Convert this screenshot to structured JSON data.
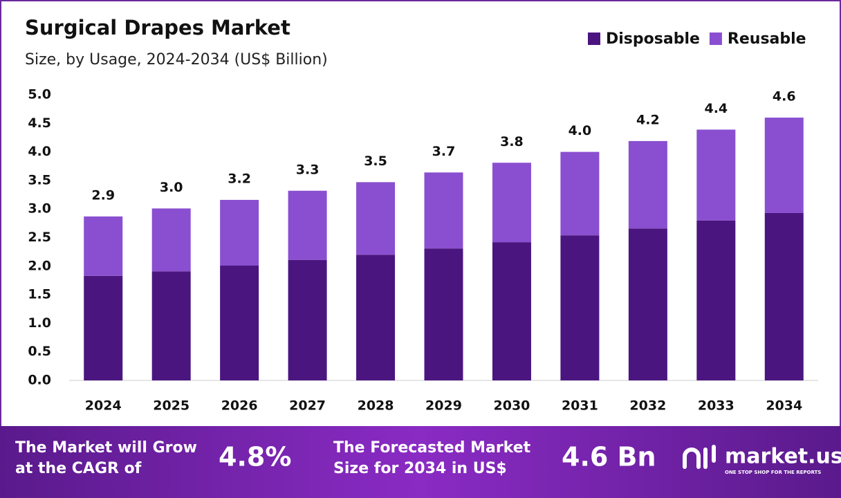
{
  "chart_data": {
    "type": "stacked_bar",
    "title": "Surgical Drapes Market",
    "subtitle": "Size, by Usage, 2024-2034 (US$ Billion)",
    "categories": [
      "2024",
      "2025",
      "2026",
      "2027",
      "2028",
      "2029",
      "2030",
      "2031",
      "2032",
      "2033",
      "2034"
    ],
    "series": [
      {
        "name": "Disposable",
        "color": "#4b1580",
        "values": [
          1.83,
          1.91,
          2.01,
          2.11,
          2.2,
          2.31,
          2.42,
          2.54,
          2.66,
          2.8,
          2.93
        ]
      },
      {
        "name": "Reusable",
        "color": "#8a4fd0",
        "values": [
          1.04,
          1.1,
          1.15,
          1.21,
          1.27,
          1.33,
          1.39,
          1.46,
          1.53,
          1.59,
          1.67
        ]
      }
    ],
    "total_labels": [
      "2.9",
      "3.0",
      "3.2",
      "3.3",
      "3.5",
      "3.7",
      "3.8",
      "4.0",
      "4.2",
      "4.4",
      "4.6"
    ],
    "ylim": [
      0,
      5
    ],
    "yticks": [
      {
        "value": 0,
        "label": "0.0"
      },
      {
        "value": 0.5,
        "label": "0.5"
      },
      {
        "value": 1,
        "label": "1.0"
      },
      {
        "value": 1.5,
        "label": "1.5"
      },
      {
        "value": 2,
        "label": "2.0"
      },
      {
        "value": 2.5,
        "label": "2.5"
      },
      {
        "value": 3,
        "label": "3.0"
      },
      {
        "value": 3.5,
        "label": "3.5"
      },
      {
        "value": 4,
        "label": "4.0"
      },
      {
        "value": 4.5,
        "label": "4.5"
      },
      {
        "value": 5,
        "label": "5.0"
      }
    ],
    "legend": "top-right"
  },
  "footer": {
    "cagr_text": [
      "The Market will Grow",
      "at the CAGR of"
    ],
    "cagr": "4.8%",
    "size_text": [
      "The Forecasted Market",
      "Size for 2034 in US$"
    ],
    "size": "4.6 Bn",
    "logo": "market.us",
    "tagline": "ONE STOP SHOP FOR THE REPORTS"
  }
}
